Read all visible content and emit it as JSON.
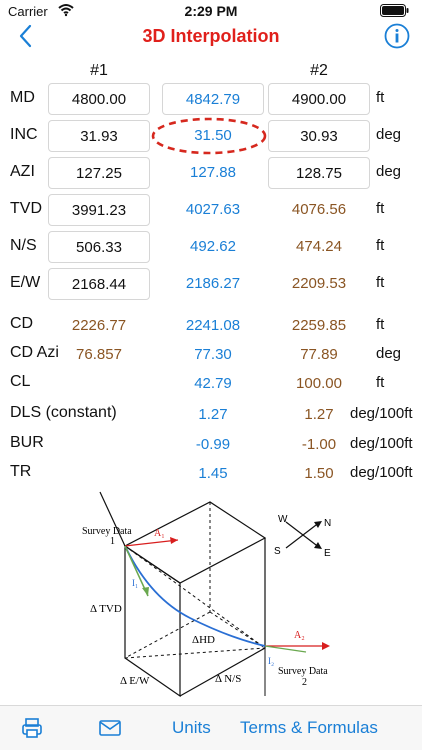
{
  "status": {
    "carrier": "Carrier",
    "time": "2:29 PM"
  },
  "nav": {
    "title": "3D Interpolation",
    "back_icon": "chevron-left-icon",
    "info_icon": "info-icon"
  },
  "columns": {
    "first": "#1",
    "second": "#2"
  },
  "rows": [
    {
      "label": "MD",
      "v1": "4800.00",
      "v2": "4842.79",
      "v3": "4900.00",
      "unit": "ft"
    },
    {
      "label": "INC",
      "v1": "31.93",
      "v2": "31.50",
      "v3": "30.93",
      "unit": "deg"
    },
    {
      "label": "AZI",
      "v1": "127.25",
      "v2": "127.88",
      "v3": "128.75",
      "unit": "deg"
    },
    {
      "label": "TVD",
      "v1": "3991.23",
      "v2": "4027.63",
      "v3": "4076.56",
      "unit": "ft"
    },
    {
      "label": "N/S",
      "v1": "506.33",
      "v2": "492.62",
      "v3": "474.24",
      "unit": "ft"
    },
    {
      "label": "E/W",
      "v1": "2168.44",
      "v2": "2186.27",
      "v3": "2209.53",
      "unit": "ft"
    }
  ],
  "summary": [
    {
      "label": "CD",
      "v1": "2226.77",
      "v2": "2241.08",
      "v3": "2259.85",
      "unit": "ft"
    },
    {
      "label": "CD Azi",
      "v1": "76.857",
      "v2": "77.30",
      "v3": "77.89",
      "unit": "deg"
    },
    {
      "label": "CL",
      "v1": "",
      "v2": "42.79",
      "v3": "100.00",
      "unit": "ft"
    },
    {
      "label": "DLS (constant)",
      "v1": "",
      "v2": "1.27",
      "v3": "1.27",
      "unit": "deg/100ft"
    },
    {
      "label": "BUR",
      "v1": "",
      "v2": "-0.99",
      "v3": "-1.00",
      "unit": "deg/100ft"
    },
    {
      "label": "TR",
      "v1": "",
      "v2": "1.45",
      "v3": "1.50",
      "unit": "deg/100ft"
    }
  ],
  "diagram": {
    "survey1": "Survey Data",
    "survey1_num": "1",
    "survey2": "Survey Data",
    "survey2_num": "2",
    "a1": "A₁",
    "a2": "A₂",
    "i1": "I₁",
    "i2": "I₂",
    "tvd": "Δ TVD",
    "hd": "ΔHD",
    "ew": "Δ E/W",
    "ns": "Δ N/S",
    "compass_w": "W",
    "compass_n": "N",
    "compass_s": "S",
    "compass_e": "E"
  },
  "tabs": {
    "print_icon": "printer-icon",
    "mail_icon": "mail-icon",
    "units": "Units",
    "terms": "Terms & Formulas"
  },
  "colors": {
    "title": "#e0201b",
    "accent": "#1a7fd6",
    "computed": "#8a5523"
  }
}
